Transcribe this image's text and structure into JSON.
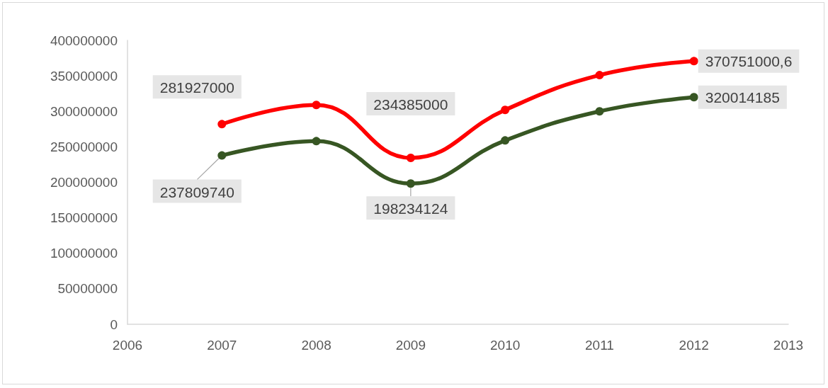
{
  "chart_data": {
    "type": "line",
    "x": [
      2007,
      2008,
      2009,
      2010,
      2011,
      2012
    ],
    "series": [
      {
        "color": "#ff0000",
        "values": [
          281927000,
          309000000,
          234385000,
          302000000,
          351000000,
          370751000.6
        ],
        "value_labels": [
          "281927000",
          null,
          "234385000",
          null,
          null,
          "370751000,6"
        ]
      },
      {
        "color": "#375623",
        "values": [
          237809740,
          258000000,
          198234124,
          259000000,
          300000000,
          320014185
        ],
        "value_labels": [
          "237809740",
          null,
          "198234124",
          null,
          null,
          "320014185"
        ]
      }
    ],
    "xlim": [
      2006,
      2013
    ],
    "xticks": [
      2006,
      2007,
      2008,
      2009,
      2010,
      2011,
      2012,
      2013
    ],
    "ylim": [
      0,
      400000000
    ],
    "yticks": [
      0,
      50000000,
      100000000,
      150000000,
      200000000,
      250000000,
      300000000,
      350000000,
      400000000
    ],
    "grid": false,
    "marker": "circle",
    "line_style": "solid"
  }
}
